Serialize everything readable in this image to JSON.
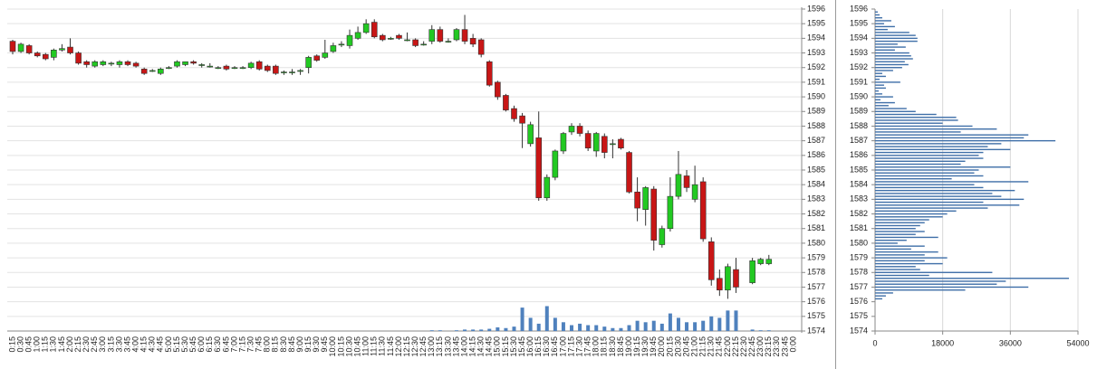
{
  "chart_data": [
    {
      "type": "candlestick",
      "categories": [
        "0:15",
        "0:30",
        "0:45",
        "1:00",
        "1:15",
        "1:30",
        "1:45",
        "2:00",
        "2:15",
        "2:30",
        "2:45",
        "3:00",
        "3:15",
        "3:30",
        "3:45",
        "4:00",
        "4:15",
        "4:30",
        "4:45",
        "5:00",
        "5:15",
        "5:30",
        "5:45",
        "6:00",
        "6:15",
        "6:30",
        "6:45",
        "7:00",
        "7:15",
        "7:30",
        "7:45",
        "8:00",
        "8:15",
        "8:30",
        "8:45",
        "9:00",
        "9:15",
        "9:30",
        "9:45",
        "10:00",
        "10:15",
        "10:30",
        "10:45",
        "11:00",
        "11:15",
        "11:30",
        "11:45",
        "12:00",
        "12:15",
        "12:30",
        "12:45",
        "13:00",
        "13:15",
        "13:30",
        "13:45",
        "14:00",
        "14:15",
        "14:30",
        "14:45",
        "15:00",
        "15:15",
        "15:30",
        "15:45",
        "16:00",
        "16:15",
        "16:30",
        "16:45",
        "17:00",
        "17:15",
        "17:30",
        "17:45",
        "18:00",
        "18:15",
        "18:30",
        "18:45",
        "19:00",
        "19:15",
        "19:30",
        "19:45",
        "20:00",
        "20:15",
        "20:30",
        "20:45",
        "21:00",
        "21:15",
        "21:30",
        "21:45",
        "22:00",
        "22:15",
        "22:30",
        "22:45",
        "23:00",
        "23:15",
        "23:30",
        "23:45",
        "0:00"
      ],
      "open": [
        1593.8,
        1593.1,
        1593.5,
        1593.0,
        1592.9,
        1592.7,
        1593.2,
        1593.4,
        1593.0,
        1592.4,
        1592.1,
        1592.2,
        1592.3,
        1592.2,
        1592.4,
        1592.3,
        1591.9,
        1591.8,
        1591.6,
        1592.0,
        1592.1,
        1592.2,
        1592.4,
        1592.2,
        1592.1,
        1592.0,
        1592.1,
        1592.0,
        1592.0,
        1592.0,
        1592.4,
        1592.1,
        1592.1,
        1591.7,
        1591.7,
        1591.8,
        1592.0,
        1592.8,
        1592.7,
        1593.1,
        1593.6,
        1593.5,
        1594.0,
        1594.4,
        1595.1,
        1594.2,
        1594.0,
        1594.2,
        1593.9,
        1593.9,
        1593.6,
        1593.8,
        1594.6,
        1593.8,
        1593.9,
        1594.6,
        1594.0,
        1593.9,
        1592.4,
        1591.0,
        1590.1,
        1589.2,
        1588.7,
        1586.8,
        1587.2,
        1583.1,
        1584.5,
        1586.3,
        1587.6,
        1588.0,
        1587.5,
        1586.3,
        1587.3,
        1586.8,
        1587.1,
        1586.2,
        1583.5,
        1582.3,
        1583.7,
        1579.9,
        1581.0,
        1583.2,
        1584.6,
        1583.0,
        1584.2,
        1580.1,
        1577.6,
        1576.8,
        1578.2,
        null,
        1577.3,
        1578.6,
        1578.6,
        null,
        null,
        null
      ],
      "high": [
        1593.9,
        1593.7,
        1593.6,
        1593.1,
        1593.0,
        1593.3,
        1593.6,
        1594.0,
        1593.1,
        1592.5,
        1592.5,
        1592.5,
        1592.4,
        1592.5,
        1592.5,
        1592.4,
        1592.0,
        1591.9,
        1592.0,
        1592.1,
        1592.5,
        1592.4,
        1592.5,
        1592.3,
        1592.3,
        1592.1,
        1592.2,
        1592.1,
        1592.1,
        1592.4,
        1592.5,
        1592.2,
        1592.2,
        1591.8,
        1591.9,
        1591.9,
        1592.8,
        1592.9,
        1593.9,
        1593.7,
        1593.8,
        1594.6,
        1594.8,
        1595.3,
        1595.3,
        1594.3,
        1594.1,
        1594.3,
        1594.4,
        1594.0,
        1593.8,
        1594.9,
        1594.8,
        1594.0,
        1594.7,
        1595.6,
        1594.3,
        1594.0,
        1592.5,
        1591.1,
        1590.2,
        1589.4,
        1588.9,
        1588.3,
        1589.0,
        1584.7,
        1586.4,
        1587.6,
        1588.2,
        1588.2,
        1587.7,
        1587.6,
        1587.5,
        1587.1,
        1587.2,
        1586.3,
        1584.5,
        1583.9,
        1583.9,
        1581.2,
        1584.5,
        1586.3,
        1585.0,
        1585.3,
        1584.5,
        1580.4,
        1578.2,
        1578.6,
        1579.0,
        null,
        1579.0,
        1579.0,
        1579.2,
        null,
        null,
        null
      ],
      "low": [
        1592.9,
        1593.0,
        1592.9,
        1592.7,
        1592.5,
        1592.5,
        1593.1,
        1592.9,
        1592.2,
        1592.0,
        1592.0,
        1592.1,
        1592.1,
        1592.0,
        1592.1,
        1592.0,
        1591.5,
        1591.7,
        1591.5,
        1591.9,
        1592.0,
        1592.1,
        1592.2,
        1592.0,
        1592.0,
        1591.9,
        1591.8,
        1591.9,
        1591.9,
        1591.9,
        1591.8,
        1591.7,
        1591.5,
        1591.5,
        1591.5,
        1591.5,
        1591.6,
        1592.4,
        1592.6,
        1593.0,
        1593.4,
        1593.3,
        1593.9,
        1594.3,
        1594.0,
        1593.8,
        1593.9,
        1593.9,
        1593.8,
        1593.4,
        1593.5,
        1593.6,
        1593.7,
        1593.7,
        1593.8,
        1593.6,
        1593.4,
        1592.7,
        1590.7,
        1589.8,
        1589.0,
        1588.3,
        1586.5,
        1586.6,
        1582.9,
        1582.9,
        1584.3,
        1586.1,
        1587.4,
        1587.3,
        1586.3,
        1585.9,
        1585.8,
        1585.8,
        1586.4,
        1583.4,
        1581.5,
        1581.2,
        1579.5,
        1579.7,
        1580.8,
        1583.0,
        1583.5,
        1582.8,
        1580.1,
        1577.1,
        1576.4,
        1576.2,
        1576.6,
        null,
        1577.2,
        1578.5,
        1578.5,
        null,
        null,
        null
      ],
      "close": [
        1593.1,
        1593.6,
        1593.0,
        1592.8,
        1592.6,
        1593.2,
        1593.3,
        1593.0,
        1592.3,
        1592.2,
        1592.4,
        1592.4,
        1592.3,
        1592.4,
        1592.2,
        1592.1,
        1591.6,
        1591.8,
        1591.9,
        1592.0,
        1592.4,
        1592.4,
        1592.3,
        1592.2,
        1592.1,
        1592.0,
        1591.9,
        1592.0,
        1592.0,
        1592.3,
        1591.9,
        1591.8,
        1591.6,
        1591.7,
        1591.7,
        1591.8,
        1592.7,
        1592.5,
        1593.0,
        1593.5,
        1593.6,
        1594.2,
        1594.4,
        1595.0,
        1594.1,
        1593.9,
        1594.0,
        1594.0,
        1593.9,
        1593.5,
        1593.6,
        1594.6,
        1593.8,
        1593.8,
        1594.6,
        1593.8,
        1593.6,
        1592.9,
        1590.8,
        1590.0,
        1589.1,
        1588.5,
        1588.2,
        1588.1,
        1583.1,
        1584.5,
        1586.3,
        1587.5,
        1588.0,
        1587.5,
        1586.5,
        1587.5,
        1586.2,
        1586.8,
        1586.5,
        1583.5,
        1582.4,
        1583.8,
        1580.2,
        1581.0,
        1583.2,
        1584.7,
        1583.8,
        1584.0,
        1580.3,
        1577.5,
        1576.8,
        1578.4,
        1577.0,
        null,
        1578.8,
        1578.9,
        1578.9,
        null,
        null,
        null
      ],
      "volume": [
        0,
        0,
        0,
        0,
        0,
        0,
        0,
        0,
        0,
        0,
        0,
        0,
        0,
        0,
        0,
        0,
        0,
        0,
        0,
        0,
        0,
        0,
        0,
        0,
        0,
        0,
        0,
        0,
        0,
        0,
        0,
        0,
        0,
        0,
        0,
        0,
        0,
        0,
        0,
        0,
        0,
        0,
        0,
        0,
        0,
        0,
        0,
        0,
        0,
        0,
        0,
        0.05,
        0.05,
        0,
        0.05,
        0.1,
        0.1,
        0.1,
        0.15,
        0.25,
        0.2,
        0.3,
        1.6,
        0.9,
        0.5,
        1.7,
        0.9,
        0.6,
        0.4,
        0.5,
        0.4,
        0.4,
        0.3,
        0.2,
        0.2,
        0.4,
        0.7,
        0.6,
        0.7,
        0.5,
        1.2,
        0.9,
        0.6,
        0.6,
        0.7,
        1.0,
        0.9,
        1.4,
        1.4,
        0,
        0.1,
        0.05,
        0.05,
        0,
        0,
        0
      ],
      "up_color": "#22c922",
      "down_color": "#c81616",
      "volume_color": "#4f81bd",
      "ylim": [
        1574,
        1596
      ],
      "yticks": [
        1574,
        1575,
        1576,
        1577,
        1578,
        1579,
        1580,
        1581,
        1582,
        1583,
        1584,
        1585,
        1586,
        1587,
        1588,
        1589,
        1590,
        1591,
        1592,
        1593,
        1594,
        1595,
        1596
      ],
      "grid": true
    },
    {
      "type": "barh",
      "y": [
        1595.8,
        1595.6,
        1595.4,
        1595.2,
        1595.0,
        1594.8,
        1594.6,
        1594.4,
        1594.2,
        1594.0,
        1593.8,
        1593.6,
        1593.4,
        1593.2,
        1593.0,
        1592.8,
        1592.6,
        1592.4,
        1592.2,
        1592.0,
        1591.8,
        1591.6,
        1591.4,
        1591.2,
        1591.0,
        1590.8,
        1590.6,
        1590.4,
        1590.2,
        1590.0,
        1589.8,
        1589.6,
        1589.4,
        1589.2,
        1589.0,
        1588.8,
        1588.6,
        1588.4,
        1588.2,
        1588.0,
        1587.8,
        1587.6,
        1587.4,
        1587.2,
        1587.0,
        1586.8,
        1586.6,
        1586.4,
        1586.2,
        1586.0,
        1585.8,
        1585.6,
        1585.4,
        1585.2,
        1585.0,
        1584.8,
        1584.6,
        1584.4,
        1584.2,
        1584.0,
        1583.8,
        1583.6,
        1583.4,
        1583.2,
        1583.0,
        1582.8,
        1582.6,
        1582.4,
        1582.2,
        1582.0,
        1581.8,
        1581.6,
        1581.4,
        1581.2,
        1581.0,
        1580.8,
        1580.6,
        1580.4,
        1580.2,
        1580.0,
        1579.8,
        1579.6,
        1579.4,
        1579.2,
        1579.0,
        1578.8,
        1578.6,
        1578.4,
        1578.2,
        1578.0,
        1577.8,
        1577.6,
        1577.4,
        1577.2,
        1577.0,
        1576.8,
        1576.6,
        1576.4,
        1576.2
      ],
      "values": [
        720,
        1200,
        1920,
        4320,
        2400,
        5280,
        3360,
        9120,
        10800,
        11280,
        11280,
        6000,
        8160,
        5280,
        9120,
        9600,
        10080,
        7920,
        8880,
        7200,
        4800,
        1920,
        2880,
        1200,
        6720,
        2400,
        2880,
        960,
        1920,
        4800,
        1440,
        5280,
        3600,
        8400,
        10800,
        16320,
        21600,
        22080,
        18000,
        25920,
        32400,
        22800,
        40800,
        39600,
        48000,
        33600,
        30000,
        36000,
        28800,
        27600,
        28800,
        24000,
        22800,
        36000,
        27600,
        26400,
        28800,
        20400,
        40800,
        26400,
        28800,
        37200,
        31200,
        33600,
        39600,
        28800,
        38400,
        30000,
        21600,
        19200,
        18000,
        14400,
        13200,
        12000,
        10800,
        13200,
        10800,
        16800,
        8400,
        6000,
        13200,
        9600,
        16800,
        13200,
        19200,
        13200,
        18000,
        10800,
        12000,
        31200,
        14400,
        51600,
        34800,
        32400,
        40800,
        24000,
        4800,
        2880,
        1920
      ],
      "color": "#3f6fa8",
      "xlim": [
        0,
        54000
      ],
      "xticks": [
        0,
        18000,
        36000,
        54000
      ],
      "ylim": [
        1574,
        1596
      ],
      "yticks": [
        1574,
        1575,
        1576,
        1577,
        1578,
        1579,
        1580,
        1581,
        1582,
        1583,
        1584,
        1585,
        1586,
        1587,
        1588,
        1589,
        1590,
        1591,
        1592,
        1593,
        1594,
        1595,
        1596
      ],
      "grid": true
    }
  ]
}
